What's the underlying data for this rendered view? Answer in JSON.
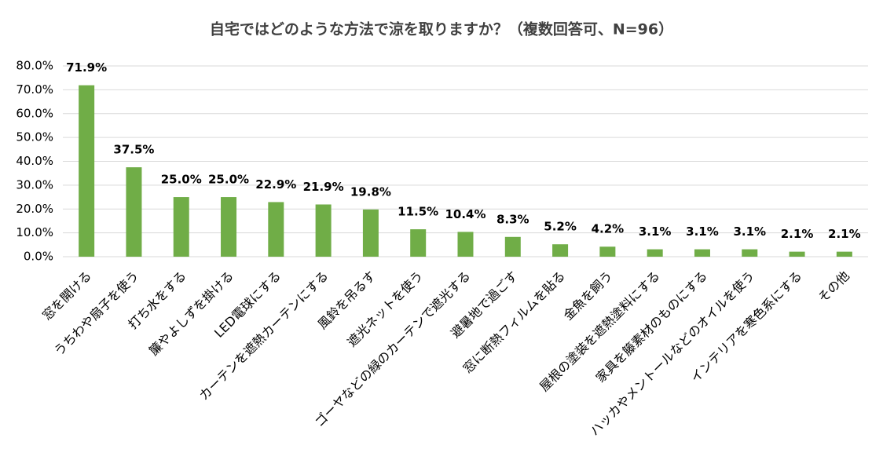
{
  "chart_data": {
    "type": "bar",
    "title": "自宅ではどのような方法で涼を取りますか？（複数回答可、N=96）",
    "categories": [
      "窓を開ける",
      "うちわや扇子を使う",
      "打ち水をする",
      "簾やよしずを掛ける",
      "LED電球にする",
      "カーテンを遮熱カーテンにする",
      "風鈴を吊るす",
      "遮光ネットを使う",
      "ゴーヤなどの緑のカーテンで遮光する",
      "避暑地で過ごす",
      "窓に断熱フィルムを貼る",
      "金魚を飼う",
      "屋根の塗装を遮熱塗料にする",
      "家具を籐素材のものにする",
      "ハッカやメントールなどのオイルを使う",
      "インテリアを寒色系にする",
      "その他"
    ],
    "values": [
      71.9,
      37.5,
      25.0,
      25.0,
      22.9,
      21.9,
      19.8,
      11.5,
      10.4,
      8.3,
      5.2,
      4.2,
      3.1,
      3.1,
      3.1,
      2.1,
      2.1
    ],
    "value_labels": [
      "71.9%",
      "37.5%",
      "25.0%",
      "25.0%",
      "22.9%",
      "21.9%",
      "19.8%",
      "11.5%",
      "10.4%",
      "8.3%",
      "5.2%",
      "4.2%",
      "3.1%",
      "3.1%",
      "3.1%",
      "2.1%",
      "2.1%"
    ],
    "color": "#70ad47",
    "ylim": [
      0,
      80
    ],
    "yticks": [
      {
        "value": 0,
        "label": "0.0%"
      },
      {
        "value": 10,
        "label": "10.0%"
      },
      {
        "value": 20,
        "label": "20.0%"
      },
      {
        "value": 30,
        "label": "30.0%"
      },
      {
        "value": 40,
        "label": "40.0%"
      },
      {
        "value": 50,
        "label": "50.0%"
      },
      {
        "value": 60,
        "label": "60.0%"
      },
      {
        "value": 70,
        "label": "70.0%"
      },
      {
        "value": 80,
        "label": "80.0%"
      }
    ],
    "grid": true
  }
}
